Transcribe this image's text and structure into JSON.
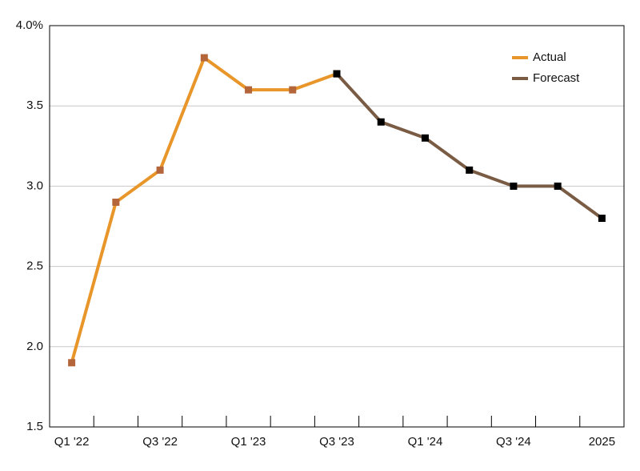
{
  "chart_data": {
    "type": "line",
    "categories": [
      "Q1 '22",
      null,
      "Q3 '22",
      null,
      "Q1 '23",
      null,
      "Q3 '23",
      null,
      "Q1 '24",
      null,
      "Q3 '24",
      null,
      "2025"
    ],
    "series": [
      {
        "name": "Actual",
        "color": "#e8962a",
        "marker_color": "#b5653a",
        "values": [
          1.9,
          2.9,
          3.1,
          3.8,
          3.6,
          3.6,
          3.7,
          null,
          null,
          null,
          null,
          null,
          null
        ]
      },
      {
        "name": "Forecast",
        "color": "#7a5c45",
        "marker_color": "#000000",
        "values": [
          null,
          null,
          null,
          null,
          null,
          null,
          3.7,
          3.4,
          3.3,
          3.1,
          3.0,
          3.0,
          2.8
        ]
      }
    ],
    "ylim": [
      1.5,
      4.0
    ],
    "yticks": [
      {
        "value": 1.5,
        "label": "1.5"
      },
      {
        "value": 2.0,
        "label": "2.0"
      },
      {
        "value": 2.5,
        "label": "2.5"
      },
      {
        "value": 3.0,
        "label": "3.0"
      },
      3.5,
      {
        "value": 4.0,
        "label": "4.0%"
      }
    ],
    "grid": true,
    "legend": "upper right"
  }
}
